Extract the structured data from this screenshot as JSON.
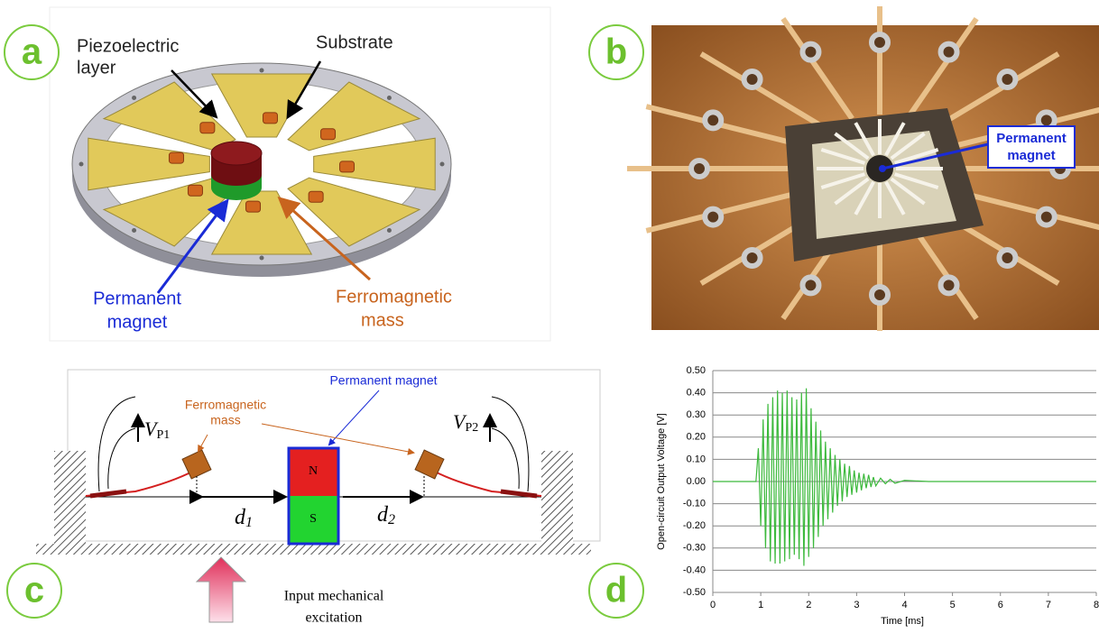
{
  "panels": {
    "a": {
      "label": "a",
      "piezo": [
        "Piezoelectric",
        "layer"
      ],
      "substrate": "Substrate",
      "magnet": [
        "Permanent",
        "magnet"
      ],
      "mass": [
        "Ferromagnetic",
        "mass"
      ]
    },
    "b": {
      "label": "b",
      "magnet": [
        "Permanent",
        "magnet"
      ]
    },
    "c": {
      "label": "c",
      "mass": [
        "Ferromagnetic",
        "mass"
      ],
      "magnet": "Permanent magnet",
      "vp1": {
        "symbol": "V",
        "subscript": "P1"
      },
      "vp2": {
        "symbol": "V",
        "subscript": "P2"
      },
      "north": "N",
      "south": "S",
      "d1": {
        "symbol": "d",
        "subscript": "1"
      },
      "d2": {
        "symbol": "d",
        "subscript": "2"
      },
      "excitation": [
        "Input mechanical",
        "excitation"
      ]
    },
    "d": {
      "label": "d"
    }
  },
  "chart_data": {
    "type": "line",
    "xlabel": "Time [ms]",
    "ylabel": "Open-circuit Output Voltage [V]",
    "color": "#3cb93c",
    "grid": true,
    "xlim": [
      0,
      8
    ],
    "xticks": [
      0,
      1,
      2,
      3,
      4,
      5,
      6,
      7,
      8
    ],
    "ylim": [
      -0.5,
      0.5
    ],
    "yticks": [
      {
        "value": -0.5,
        "label": "-0.50"
      },
      {
        "value": -0.4,
        "label": "-0.40"
      },
      {
        "value": -0.3,
        "label": "-0.30"
      },
      {
        "value": -0.2,
        "label": "-0.20"
      },
      {
        "value": -0.1,
        "label": "-0.10"
      },
      {
        "value": 0,
        "label": "0.00"
      },
      {
        "value": 0.1,
        "label": "0.10"
      },
      {
        "value": 0.2,
        "label": "0.20"
      },
      {
        "value": 0.3,
        "label": "0.30"
      },
      {
        "value": 0.4,
        "label": "0.40"
      },
      {
        "value": 0.5,
        "label": "0.50"
      }
    ],
    "x": [
      0,
      0.9,
      0.95,
      1.0,
      1.05,
      1.1,
      1.15,
      1.2,
      1.25,
      1.3,
      1.35,
      1.4,
      1.45,
      1.5,
      1.55,
      1.6,
      1.65,
      1.7,
      1.75,
      1.8,
      1.85,
      1.9,
      1.95,
      2.0,
      2.05,
      2.1,
      2.15,
      2.2,
      2.25,
      2.3,
      2.35,
      2.4,
      2.45,
      2.5,
      2.55,
      2.6,
      2.65,
      2.7,
      2.75,
      2.8,
      2.85,
      2.9,
      2.95,
      3.0,
      3.05,
      3.1,
      3.15,
      3.2,
      3.25,
      3.3,
      3.35,
      3.4,
      3.5,
      3.6,
      3.7,
      3.8,
      4.0,
      4.5,
      8
    ],
    "values": [
      0,
      0,
      0.15,
      -0.2,
      0.28,
      -0.3,
      0.35,
      -0.36,
      0.38,
      -0.37,
      0.41,
      -0.37,
      0.4,
      -0.36,
      0.41,
      -0.35,
      0.38,
      -0.33,
      0.37,
      -0.35,
      0.4,
      -0.38,
      0.42,
      -0.34,
      0.33,
      -0.3,
      0.27,
      -0.25,
      0.23,
      -0.2,
      0.18,
      -0.17,
      0.15,
      -0.14,
      0.12,
      -0.11,
      0.1,
      -0.09,
      0.08,
      -0.07,
      0.07,
      -0.06,
      0.05,
      -0.05,
      0.04,
      -0.04,
      0.035,
      -0.03,
      0.03,
      -0.025,
      0.02,
      -0.02,
      0.015,
      -0.01,
      0.01,
      -0.008,
      0.005,
      0,
      0
    ]
  }
}
